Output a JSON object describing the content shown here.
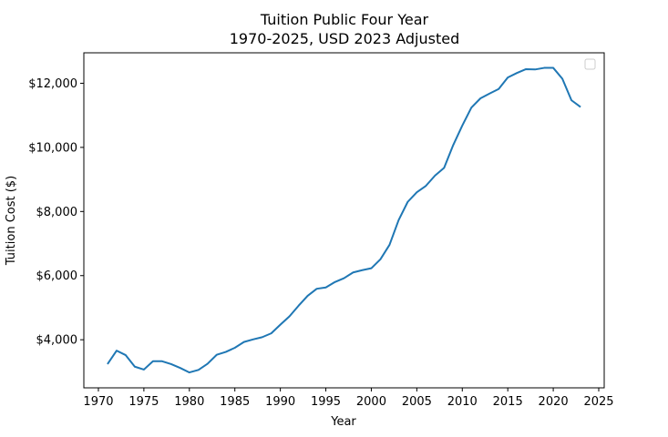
{
  "chart_data": {
    "type": "line",
    "title": "Tuition Public Four Year",
    "subtitle": "1970-2025, USD 2023 Adjusted",
    "xlabel": "Year",
    "ylabel": "Tuition Cost ($)",
    "xlim": [
      1968.4,
      2025.6
    ],
    "ylim": [
      2500,
      12950
    ],
    "x_ticks": [
      1970,
      1975,
      1980,
      1985,
      1990,
      1995,
      2000,
      2005,
      2010,
      2015,
      2020,
      2025
    ],
    "x_tick_labels": [
      "1970",
      "1975",
      "1980",
      "1985",
      "1990",
      "1995",
      "2000",
      "2005",
      "2010",
      "2015",
      "2020",
      "2025"
    ],
    "y_ticks": [
      4000,
      6000,
      8000,
      10000,
      12000
    ],
    "y_tick_labels": [
      "$4,000",
      "$6,000",
      "$8,000",
      "$10,000",
      "$12,000"
    ],
    "grid": false,
    "legend": "top-right (empty)",
    "line_color": "#1f77b4",
    "series": [
      {
        "x": [
          1971,
          1972,
          1973,
          1974,
          1975,
          1976,
          1977,
          1978,
          1979,
          1980,
          1981,
          1982,
          1983,
          1984,
          1985,
          1986,
          1987,
          1988,
          1989,
          1990,
          1991,
          1992,
          1993,
          1994,
          1995,
          1996,
          1997,
          1998,
          1999,
          2000,
          2001,
          2002,
          2003,
          2004,
          2005,
          2006,
          2007,
          2008,
          2009,
          2010,
          2011,
          2012,
          2013,
          2014,
          2015,
          2016,
          2017,
          2018,
          2019,
          2020,
          2021,
          2022,
          2023
        ],
        "values": [
          3240,
          3660,
          3520,
          3160,
          3070,
          3330,
          3330,
          3240,
          3120,
          2980,
          3060,
          3250,
          3530,
          3620,
          3750,
          3930,
          4010,
          4080,
          4200,
          4470,
          4730,
          5060,
          5370,
          5590,
          5630,
          5800,
          5920,
          6100,
          6170,
          6230,
          6510,
          6960,
          7730,
          8300,
          8600,
          8800,
          9120,
          9360,
          10070,
          10680,
          11240,
          11530,
          11680,
          11820,
          12180,
          12320,
          12440,
          12430,
          12480,
          12480,
          12140,
          11470,
          11260
        ]
      }
    ]
  }
}
